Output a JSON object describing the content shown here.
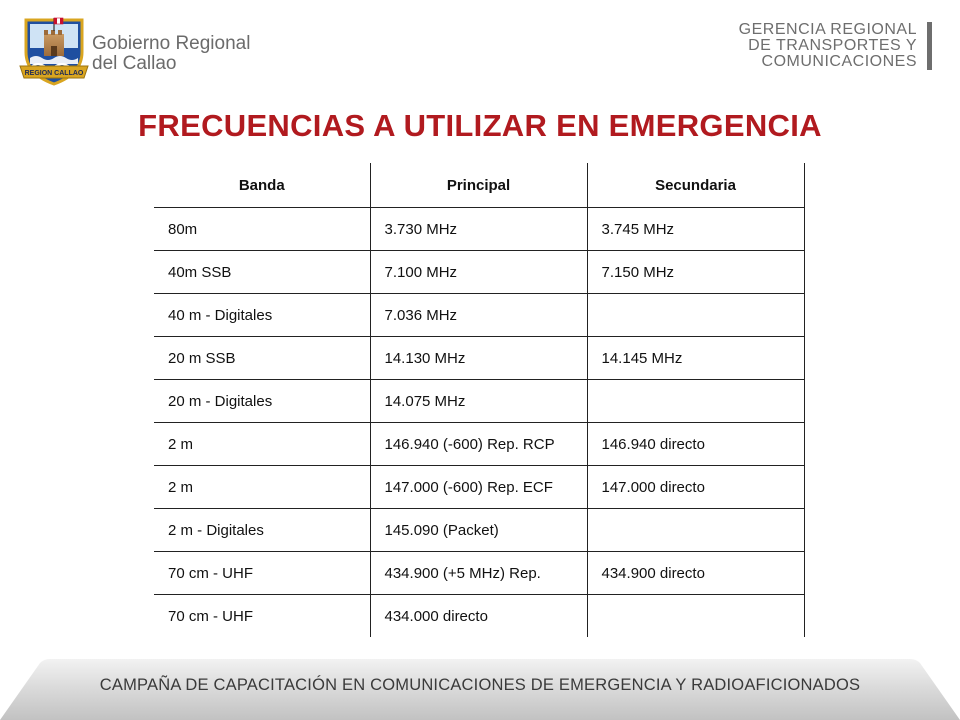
{
  "header": {
    "logo_text": "REGION CALLAO",
    "org_name_line1": "Gobierno Regional",
    "org_name_line2": "del Callao",
    "agency_line1": "GERENCIA REGIONAL",
    "agency_line2": "DE TRANSPORTES Y",
    "agency_line3": "COMUNICACIONES"
  },
  "title": "FRECUENCIAS A UTILIZAR EN EMERGENCIA",
  "table": {
    "headers": [
      "Banda",
      "Principal",
      "Secundaria"
    ],
    "rows": [
      [
        "80m",
        "3.730 MHz",
        "3.745  MHz"
      ],
      [
        "40m  SSB",
        "7.100 MHz",
        "7.150  MHz"
      ],
      [
        "40 m  - Digitales",
        "7.036  MHz",
        ""
      ],
      [
        "20 m  SSB",
        "14.130 MHz",
        "14.145 MHz"
      ],
      [
        "20 m  - Digitales",
        "14.075 MHz",
        ""
      ],
      [
        "2 m",
        "146.940 (-600) Rep. RCP",
        "146.940 directo"
      ],
      [
        "2 m",
        "147.000 (-600) Rep. ECF",
        "147.000 directo"
      ],
      [
        "2 m - Digitales",
        "145.090  (Packet)",
        ""
      ],
      [
        "70 cm - UHF",
        "434.900 (+5 MHz) Rep.",
        "434.900 directo"
      ],
      [
        "70 cm - UHF",
        "434.000 directo",
        ""
      ]
    ]
  },
  "footer": "CAMPAÑA DE CAPACITACIÓN EN COMUNICACIONES DE EMERGENCIA Y RADIOAFICIONADOS",
  "colors": {
    "title": "#b11a1f",
    "logo_blue": "#1f4fa0",
    "logo_gold": "#d9a520",
    "logo_red": "#c8102e",
    "text_gray": "#6b6b6b"
  }
}
